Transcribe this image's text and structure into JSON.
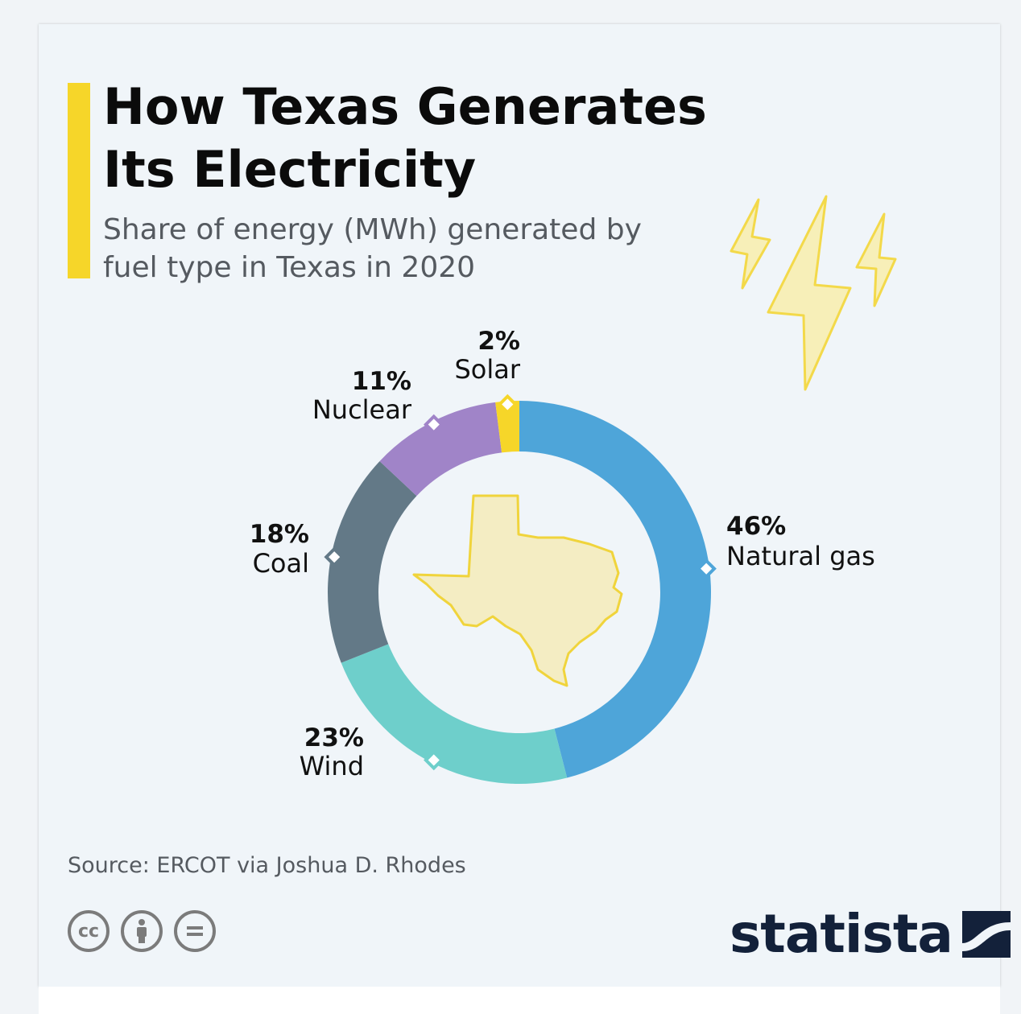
{
  "title": "How Texas Generates Its Electricity",
  "subtitle": "Share of energy (MWh) generated by fuel type in Texas in 2020",
  "source": "Source: ERCOT via Joshua D. Rhodes",
  "brand": "statista",
  "license_icons": [
    "cc-icon",
    "person-icon",
    "equal-icon"
  ],
  "colors": {
    "accent": "#f6d629",
    "natural_gas": "#4ea5d9",
    "wind": "#6ecfcb",
    "coal": "#637987",
    "nuclear": "#a084c8",
    "solar": "#f6d629",
    "brand": "#13213a"
  },
  "chart_data": {
    "type": "pie",
    "donut": true,
    "title": "How Texas Generates Its Electricity",
    "subtitle": "Share of energy (MWh) generated by fuel type in Texas in 2020",
    "slices": [
      {
        "label": "Natural gas",
        "value": 46,
        "display": "46%",
        "color": "#4ea5d9"
      },
      {
        "label": "Wind",
        "value": 23,
        "display": "23%",
        "color": "#6ecfcb"
      },
      {
        "label": "Coal",
        "value": 18,
        "display": "18%",
        "color": "#637987"
      },
      {
        "label": "Nuclear",
        "value": 11,
        "display": "11%",
        "color": "#a084c8"
      },
      {
        "label": "Solar",
        "value": 2,
        "display": "2%",
        "color": "#f6d629"
      }
    ],
    "start": "top",
    "direction": "clockwise"
  }
}
